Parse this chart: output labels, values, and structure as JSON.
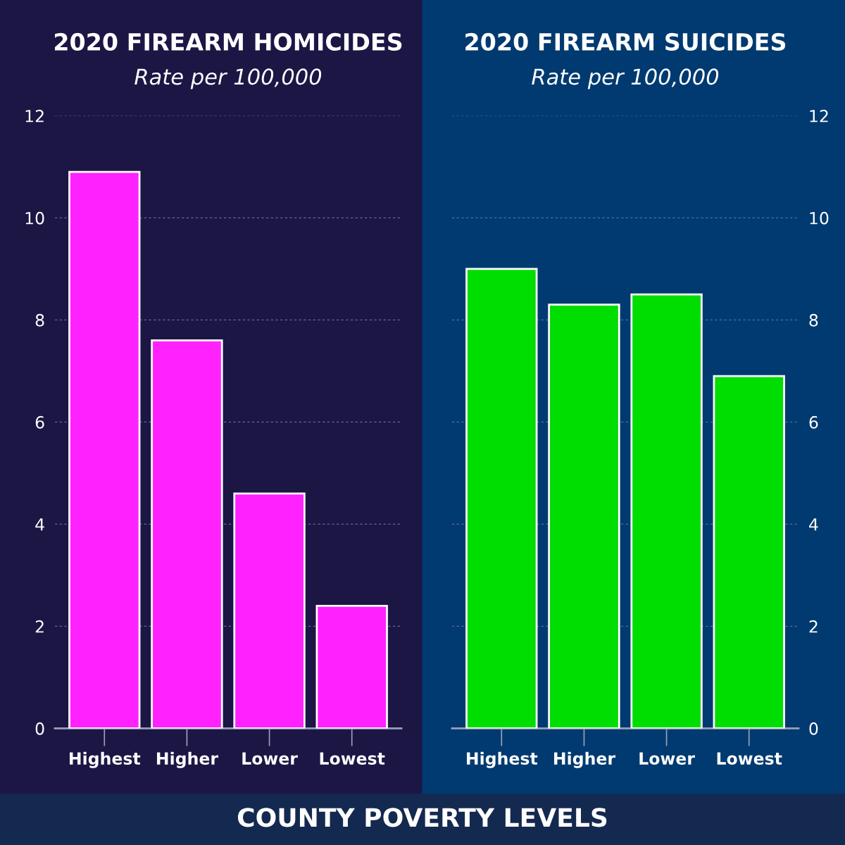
{
  "chart_data": [
    {
      "type": "bar",
      "title": "2020 FIREARM HOMICIDES",
      "subtitle": "Rate per 100,000",
      "categories": [
        "Highest",
        "Higher",
        "Lower",
        "Lowest"
      ],
      "values": [
        10.9,
        7.6,
        4.6,
        2.4
      ],
      "color": "#ff22ff",
      "ylim": [
        0,
        12
      ],
      "yticks": [
        0,
        2,
        4,
        6,
        8,
        10,
        12
      ],
      "grid": "y",
      "annotations": [
        "COUNTY POVERTY LEVELS"
      ]
    },
    {
      "type": "bar",
      "title": "2020 FIREARM SUICIDES",
      "subtitle": "Rate per 100,000",
      "categories": [
        "Highest",
        "Higher",
        "Lower",
        "Lowest"
      ],
      "values": [
        9.0,
        8.3,
        8.5,
        6.9
      ],
      "color": "#00dd00",
      "ylim": [
        0,
        12
      ],
      "yticks": [
        0,
        2,
        4,
        6,
        8,
        10,
        12
      ],
      "grid": "y"
    }
  ]
}
